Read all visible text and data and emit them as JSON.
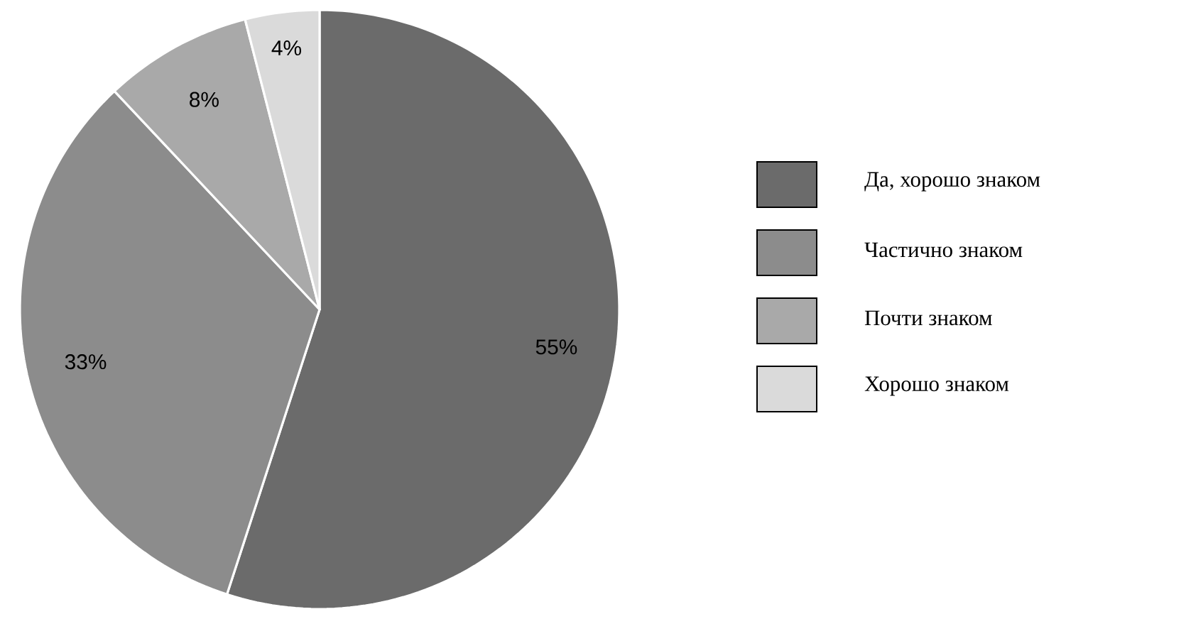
{
  "chart_data": {
    "type": "pie",
    "categories": [
      "Да, хорошо знаком",
      "Частично знаком",
      "Почти знаком",
      "Хорошо знаком"
    ],
    "values": [
      55,
      33,
      8,
      4
    ],
    "colors": [
      "#6b6b6b",
      "#8c8c8c",
      "#a9a9a9",
      "#dadada"
    ],
    "value_labels": [
      "55%",
      "33%",
      "8%",
      "4%"
    ],
    "legend": "right"
  }
}
